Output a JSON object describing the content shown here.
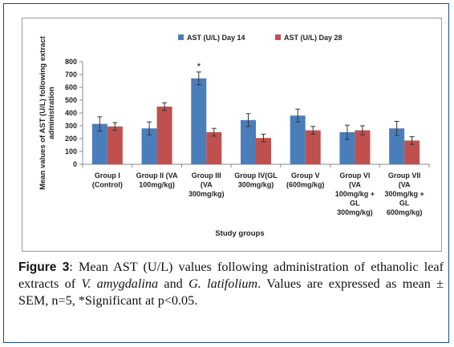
{
  "chart_data": {
    "type": "bar",
    "categories": [
      [
        "Group I",
        "(Control)"
      ],
      [
        "Group II (VA",
        "100mg/kg)"
      ],
      [
        "Group III",
        "(VA",
        "300mg/kg)"
      ],
      [
        "Group IV(GL",
        "300mg/kg)"
      ],
      [
        "Group V",
        "(600mg/kg)"
      ],
      [
        "Group VI",
        "(VA",
        "100mg/kg +",
        "GL",
        "300mg/kg)"
      ],
      [
        "Group VII",
        "(VA",
        "300mg/kg +",
        "GL",
        "600mg/kg)"
      ]
    ],
    "series": [
      {
        "name": "AST (U/L) Day 14",
        "color": "#4a7ebb",
        "values": [
          315,
          280,
          670,
          345,
          380,
          250,
          280
        ],
        "errors": [
          55,
          50,
          50,
          50,
          50,
          55,
          55
        ]
      },
      {
        "name": "AST (U/L) Day 28",
        "color": "#c0504d",
        "values": [
          295,
          450,
          250,
          205,
          265,
          265,
          185
        ],
        "errors": [
          30,
          30,
          30,
          30,
          30,
          35,
          30
        ]
      }
    ],
    "ylabel": [
      "Mean values of AST (U/L) following extract",
      "administration"
    ],
    "xlabel": "Study groups",
    "ylim": [
      0,
      800
    ],
    "yticks": [
      0,
      100,
      200,
      300,
      400,
      500,
      600,
      700,
      800
    ],
    "grid": false,
    "legend": "top-right",
    "annotations": [
      {
        "category": 2,
        "series": 0,
        "text": "*"
      }
    ]
  },
  "caption": {
    "figure_label": "Figure 3",
    "colon": ":",
    "text_before_species1": " Mean AST (U/L) values following administration of ethanolic leaf extracts of ",
    "species1": "V. amygdalina",
    "and": " and ",
    "species2": "G. latifolium",
    "text_after": ". Values are expressed as mean ± SEM, n=5, *Significant at p<0.05."
  }
}
